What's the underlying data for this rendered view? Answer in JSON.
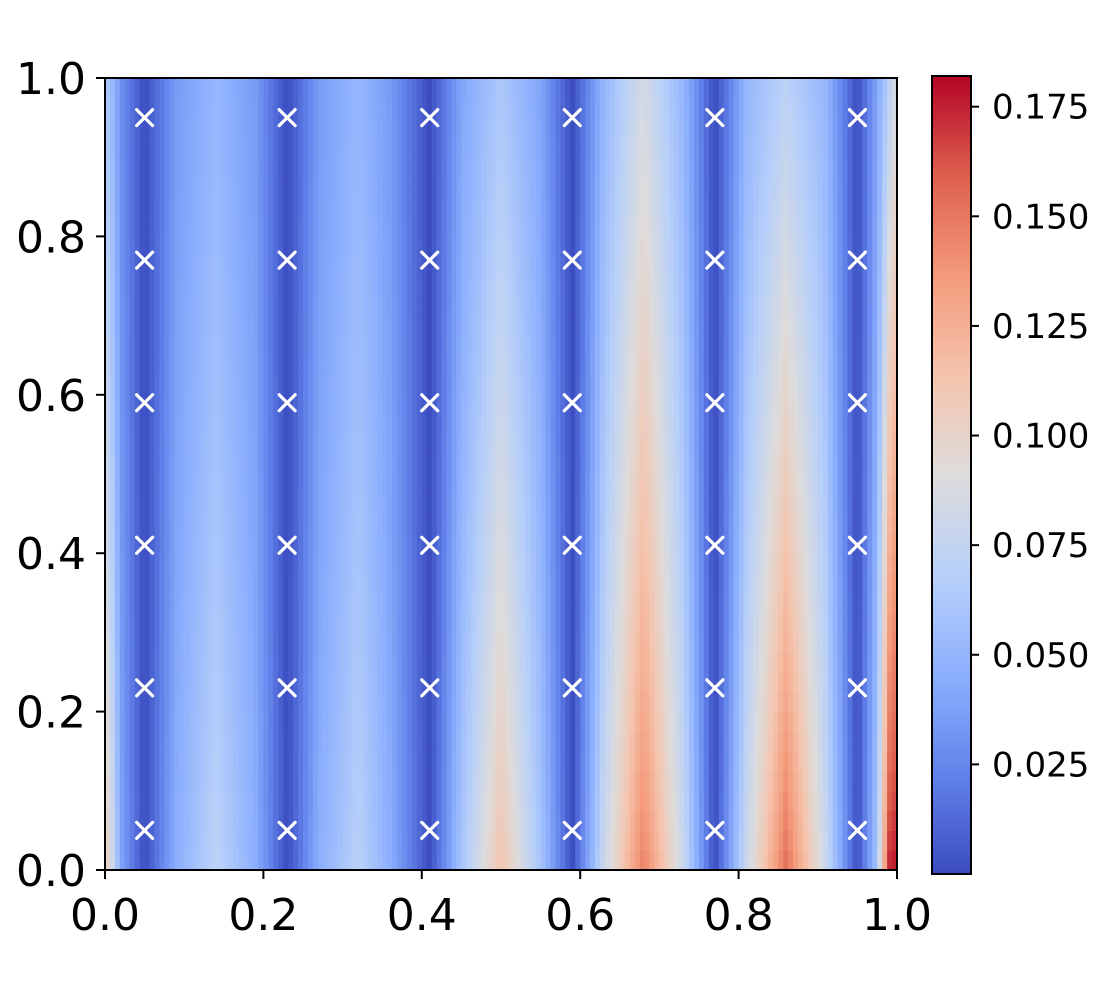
{
  "chart_data": {
    "type": "heatmap",
    "title": "",
    "xlabel": "",
    "ylabel": "",
    "xlim": [
      0.0,
      1.0
    ],
    "ylim": [
      0.0,
      1.0
    ],
    "grid": false,
    "colormap": "coolwarm",
    "x_ticks": [
      "0.0",
      "0.2",
      "0.4",
      "0.6",
      "0.8",
      "1.0"
    ],
    "y_ticks": [
      "0.0",
      "0.2",
      "0.4",
      "0.6",
      "0.8",
      "1.0"
    ],
    "colorbar": {
      "range": [
        0.0,
        0.182
      ],
      "ticks": [
        {
          "value": 0.025,
          "label": "0.025"
        },
        {
          "value": 0.05,
          "label": "0.050"
        },
        {
          "value": 0.075,
          "label": "0.075"
        },
        {
          "value": 0.1,
          "label": "0.100"
        },
        {
          "value": 0.125,
          "label": "0.125"
        },
        {
          "value": 0.15,
          "label": "0.150"
        },
        {
          "value": 0.175,
          "label": "0.175"
        }
      ]
    },
    "field_profile": {
      "description_note": "",
      "x": [
        0.0,
        0.005,
        0.02,
        0.05,
        0.09,
        0.14,
        0.19,
        0.23,
        0.27,
        0.32,
        0.36,
        0.41,
        0.45,
        0.5,
        0.55,
        0.59,
        0.63,
        0.68,
        0.73,
        0.77,
        0.81,
        0.86,
        0.91,
        0.95,
        0.975,
        0.99,
        1.0
      ],
      "value_bottom": [
        0.1,
        0.1,
        0.04,
        0.0,
        0.045,
        0.072,
        0.045,
        0.0,
        0.045,
        0.07,
        0.045,
        0.0,
        0.06,
        0.115,
        0.06,
        0.0,
        0.08,
        0.148,
        0.08,
        0.0,
        0.08,
        0.155,
        0.08,
        0.0,
        0.06,
        0.175,
        0.18
      ],
      "value_top": [
        0.06,
        0.06,
        0.03,
        0.0,
        0.035,
        0.05,
        0.035,
        0.0,
        0.035,
        0.05,
        0.035,
        0.0,
        0.04,
        0.062,
        0.04,
        0.0,
        0.05,
        0.085,
        0.05,
        0.0,
        0.05,
        0.07,
        0.05,
        0.0,
        0.04,
        0.07,
        0.09
      ]
    },
    "markers": {
      "symbol": "x",
      "color": "#ffffff",
      "x": [
        0.05,
        0.23,
        0.41,
        0.59,
        0.77,
        0.95
      ],
      "y": [
        0.05,
        0.23,
        0.41,
        0.59,
        0.77,
        0.95
      ]
    }
  }
}
